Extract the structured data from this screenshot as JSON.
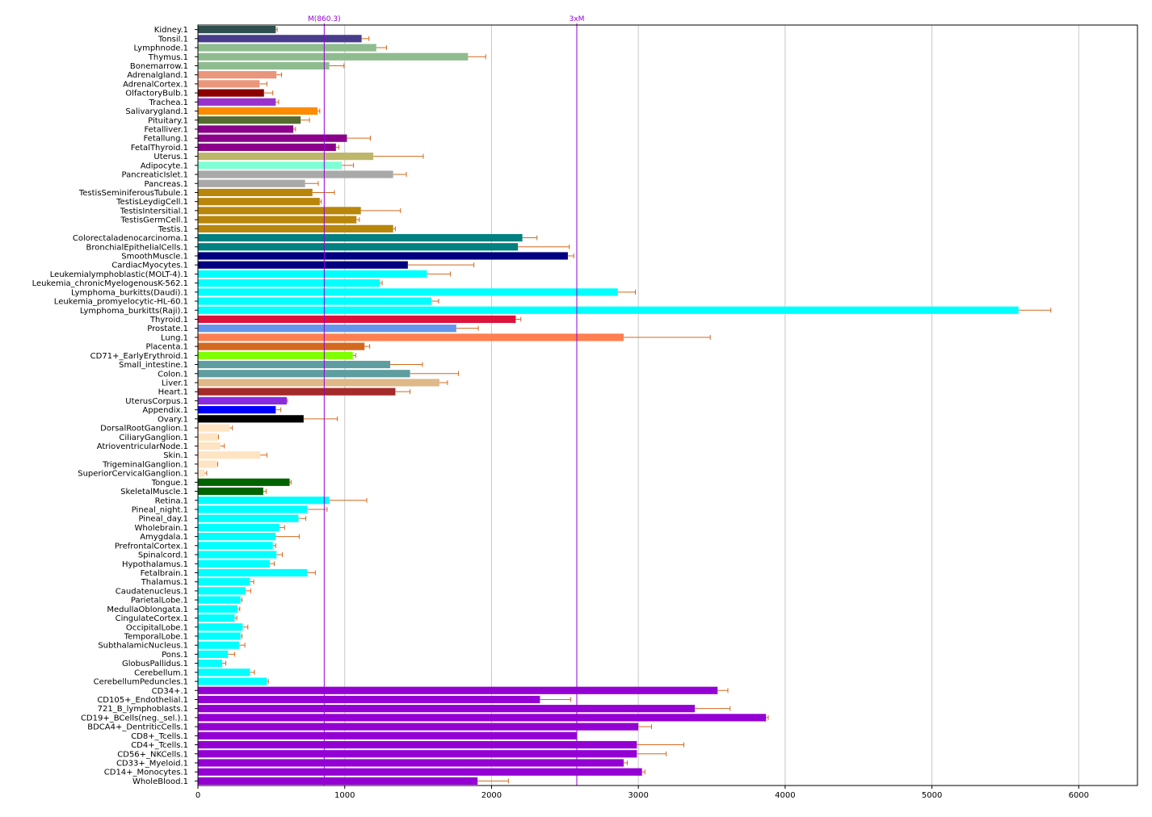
{
  "chart_data": {
    "type": "bar",
    "orientation": "horizontal",
    "title": "",
    "xlabel": "",
    "ylabel": "",
    "xlim": [
      0,
      6400
    ],
    "xticks": [
      0,
      1000,
      2000,
      3000,
      4000,
      5000,
      6000
    ],
    "grid": "vertical",
    "reference_lines": [
      {
        "label": "M(860.3)",
        "value": 860.3,
        "color": "#9400d3"
      },
      {
        "label": "3xM",
        "value": 2580.9,
        "color": "#9400d3"
      }
    ],
    "error_bar_color": "#d2691e",
    "bars": [
      {
        "label": "Kidney.1",
        "value": 530,
        "error": 10,
        "color": "#2f4f4f"
      },
      {
        "label": "Tonsil.1",
        "value": 1115,
        "error": 50,
        "color": "#483d8b"
      },
      {
        "label": "Lymphnode.1",
        "value": 1215,
        "error": 70,
        "color": "#8fbc8f"
      },
      {
        "label": "Thymus.1",
        "value": 1840,
        "error": 120,
        "color": "#8fbc8f"
      },
      {
        "label": "Bonemarrow.1",
        "value": 895,
        "error": 100,
        "color": "#8fbc8f"
      },
      {
        "label": "Adrenalgland.1",
        "value": 535,
        "error": 35,
        "color": "#e9967a"
      },
      {
        "label": "AdrenalCortex.1",
        "value": 420,
        "error": 50,
        "color": "#e9967a"
      },
      {
        "label": "OlfactoryBulb.1",
        "value": 450,
        "error": 60,
        "color": "#8b0000"
      },
      {
        "label": "Trachea.1",
        "value": 530,
        "error": 20,
        "color": "#9932cc"
      },
      {
        "label": "Salivarygland.1",
        "value": 815,
        "error": 15,
        "color": "#ff8c00"
      },
      {
        "label": "Pituitary.1",
        "value": 700,
        "error": 60,
        "color": "#556b2f"
      },
      {
        "label": "Fetalliver.1",
        "value": 650,
        "error": 15,
        "color": "#8b008b"
      },
      {
        "label": "Fetallung.1",
        "value": 1015,
        "error": 160,
        "color": "#8b008b"
      },
      {
        "label": "FetalThyroid.1",
        "value": 940,
        "error": 20,
        "color": "#8b008b"
      },
      {
        "label": "Uterus.1",
        "value": 1195,
        "error": 340,
        "color": "#bdb76b"
      },
      {
        "label": "Adipocyte.1",
        "value": 980,
        "error": 80,
        "color": "#7fffd4"
      },
      {
        "label": "PancreaticIslet.1",
        "value": 1330,
        "error": 90,
        "color": "#a9a9a9"
      },
      {
        "label": "Pancreas.1",
        "value": 730,
        "error": 90,
        "color": "#a9a9a9"
      },
      {
        "label": "TestisSeminiferousTubule.1",
        "value": 780,
        "error": 150,
        "color": "#b8860b"
      },
      {
        "label": "TestisLeydigCell.1",
        "value": 830,
        "error": 10,
        "color": "#b8860b"
      },
      {
        "label": "TestisIntersitial.1",
        "value": 1110,
        "error": 270,
        "color": "#b8860b"
      },
      {
        "label": "TestisGermCell.1",
        "value": 1080,
        "error": 20,
        "color": "#b8860b"
      },
      {
        "label": "Testis.1",
        "value": 1330,
        "error": 15,
        "color": "#b8860b"
      },
      {
        "label": "Colorectaladenocarcinoma.1",
        "value": 2210,
        "error": 100,
        "color": "#008080"
      },
      {
        "label": "BronchialEpithelialCells.1",
        "value": 2180,
        "error": 350,
        "color": "#008080"
      },
      {
        "label": "SmoothMuscle.1",
        "value": 2520,
        "error": 40,
        "color": "#000080"
      },
      {
        "label": "CardiacMyocytes.1",
        "value": 1430,
        "error": 450,
        "color": "#000080"
      },
      {
        "label": "Leukemialymphoblastic(MOLT-4).1",
        "value": 1560,
        "error": 160,
        "color": "#00ffff"
      },
      {
        "label": "Leukemia_chronicMyelogenousK-562.1",
        "value": 1240,
        "error": 15,
        "color": "#00ffff"
      },
      {
        "label": "Lymphoma_burkitts(Daudi).1",
        "value": 2860,
        "error": 120,
        "color": "#00ffff"
      },
      {
        "label": "Leukemia_promyelocytic-HL-60.1",
        "value": 1590,
        "error": 50,
        "color": "#00ffff"
      },
      {
        "label": "Lymphoma_burkitts(Raji).1",
        "value": 5590,
        "error": 220,
        "color": "#00ffff"
      },
      {
        "label": "Thyroid.1",
        "value": 2165,
        "error": 35,
        "color": "#dc143c"
      },
      {
        "label": "Prostate.1",
        "value": 1760,
        "error": 150,
        "color": "#6495ed"
      },
      {
        "label": "Lung.1",
        "value": 2900,
        "error": 590,
        "color": "#ff7f50"
      },
      {
        "label": "Placenta.1",
        "value": 1135,
        "error": 35,
        "color": "#d2691e"
      },
      {
        "label": "CD71+_EarlyErythroid.1",
        "value": 1055,
        "error": 20,
        "color": "#7fff00"
      },
      {
        "label": "Small_intestine.1",
        "value": 1310,
        "error": 220,
        "color": "#5f9ea0"
      },
      {
        "label": "Colon.1",
        "value": 1445,
        "error": 330,
        "color": "#5f9ea0"
      },
      {
        "label": "Liver.1",
        "value": 1645,
        "error": 55,
        "color": "#deb887"
      },
      {
        "label": "Heart.1",
        "value": 1345,
        "error": 100,
        "color": "#a52a2a"
      },
      {
        "label": "UterusCorpus.1",
        "value": 605,
        "error": 5,
        "color": "#8a2be2"
      },
      {
        "label": "Appendix.1",
        "value": 530,
        "error": 35,
        "color": "#0000ff"
      },
      {
        "label": "Ovary.1",
        "value": 720,
        "error": 230,
        "color": "#000000"
      },
      {
        "label": "DorsalRootGanglion.1",
        "value": 215,
        "error": 20,
        "color": "#ffe4c4"
      },
      {
        "label": "CiliaryGanglion.1",
        "value": 135,
        "error": 5,
        "color": "#ffe4c4"
      },
      {
        "label": "AtrioventricularNode.1",
        "value": 155,
        "error": 25,
        "color": "#ffe4c4"
      },
      {
        "label": "Skin.1",
        "value": 425,
        "error": 45,
        "color": "#ffe4c4"
      },
      {
        "label": "TrigeminalGanglion.1",
        "value": 130,
        "error": 5,
        "color": "#ffe4c4"
      },
      {
        "label": "SuperiorCervicalGanglion.1",
        "value": 45,
        "error": 15,
        "color": "#ffe4c4"
      },
      {
        "label": "Tongue.1",
        "value": 625,
        "error": 10,
        "color": "#006400"
      },
      {
        "label": "SkeletalMuscle.1",
        "value": 445,
        "error": 20,
        "color": "#006400"
      },
      {
        "label": "Retina.1",
        "value": 895,
        "error": 255,
        "color": "#00ffff"
      },
      {
        "label": "Pineal_night.1",
        "value": 745,
        "error": 135,
        "color": "#00ffff"
      },
      {
        "label": "Pineal_day.1",
        "value": 685,
        "error": 50,
        "color": "#00ffff"
      },
      {
        "label": "Wholebrain.1",
        "value": 555,
        "error": 35,
        "color": "#00ffff"
      },
      {
        "label": "Amygdala.1",
        "value": 530,
        "error": 160,
        "color": "#00ffff"
      },
      {
        "label": "PrefrontalCortex.1",
        "value": 510,
        "error": 20,
        "color": "#00ffff"
      },
      {
        "label": "Spinalcord.1",
        "value": 535,
        "error": 40,
        "color": "#00ffff"
      },
      {
        "label": "Hypothalamus.1",
        "value": 490,
        "error": 30,
        "color": "#00ffff"
      },
      {
        "label": "Fetalbrain.1",
        "value": 745,
        "error": 55,
        "color": "#00ffff"
      },
      {
        "label": "Thalamus.1",
        "value": 355,
        "error": 25,
        "color": "#00ffff"
      },
      {
        "label": "Caudatenucleus.1",
        "value": 325,
        "error": 35,
        "color": "#00ffff"
      },
      {
        "label": "ParietalLobe.1",
        "value": 290,
        "error": 10,
        "color": "#00ffff"
      },
      {
        "label": "MedullaOblongata.1",
        "value": 270,
        "error": 15,
        "color": "#00ffff"
      },
      {
        "label": "CingulateCortex.1",
        "value": 250,
        "error": 15,
        "color": "#00ffff"
      },
      {
        "label": "OccipitalLobe.1",
        "value": 305,
        "error": 35,
        "color": "#00ffff"
      },
      {
        "label": "TemporalLobe.1",
        "value": 290,
        "error": 10,
        "color": "#00ffff"
      },
      {
        "label": "SubthalamicNucleus.1",
        "value": 280,
        "error": 40,
        "color": "#00ffff"
      },
      {
        "label": "Pons.1",
        "value": 205,
        "error": 45,
        "color": "#00ffff"
      },
      {
        "label": "GlobusPallidus.1",
        "value": 165,
        "error": 25,
        "color": "#00ffff"
      },
      {
        "label": "Cerebellum.1",
        "value": 355,
        "error": 30,
        "color": "#00ffff"
      },
      {
        "label": "CerebellumPeduncles.1",
        "value": 470,
        "error": 10,
        "color": "#00ffff"
      },
      {
        "label": "CD34+.1",
        "value": 3540,
        "error": 70,
        "color": "#9400d3"
      },
      {
        "label": "CD105+_Endothelial.1",
        "value": 2330,
        "error": 210,
        "color": "#9400d3"
      },
      {
        "label": "721_B_lymphoblasts.1",
        "value": 3385,
        "error": 240,
        "color": "#9400d3"
      },
      {
        "label": "CD19+_BCells(neg._sel.).1",
        "value": 3870,
        "error": 15,
        "color": "#9400d3"
      },
      {
        "label": "BDCA4+_DentriticCells.1",
        "value": 3000,
        "error": 90,
        "color": "#9400d3"
      },
      {
        "label": "CD8+_Tcells.1",
        "value": 2580,
        "error": 0,
        "color": "#9400d3"
      },
      {
        "label": "CD4+_Tcells.1",
        "value": 2990,
        "error": 320,
        "color": "#9400d3"
      },
      {
        "label": "CD56+_NKCells.1",
        "value": 2990,
        "error": 200,
        "color": "#9400d3"
      },
      {
        "label": "CD33+_Myeloid.1",
        "value": 2900,
        "error": 25,
        "color": "#9400d3"
      },
      {
        "label": "CD14+_Monocytes.1",
        "value": 3025,
        "error": 20,
        "color": "#9400d3"
      },
      {
        "label": "WholeBlood.1",
        "value": 1905,
        "error": 210,
        "color": "#9400d3"
      }
    ]
  }
}
